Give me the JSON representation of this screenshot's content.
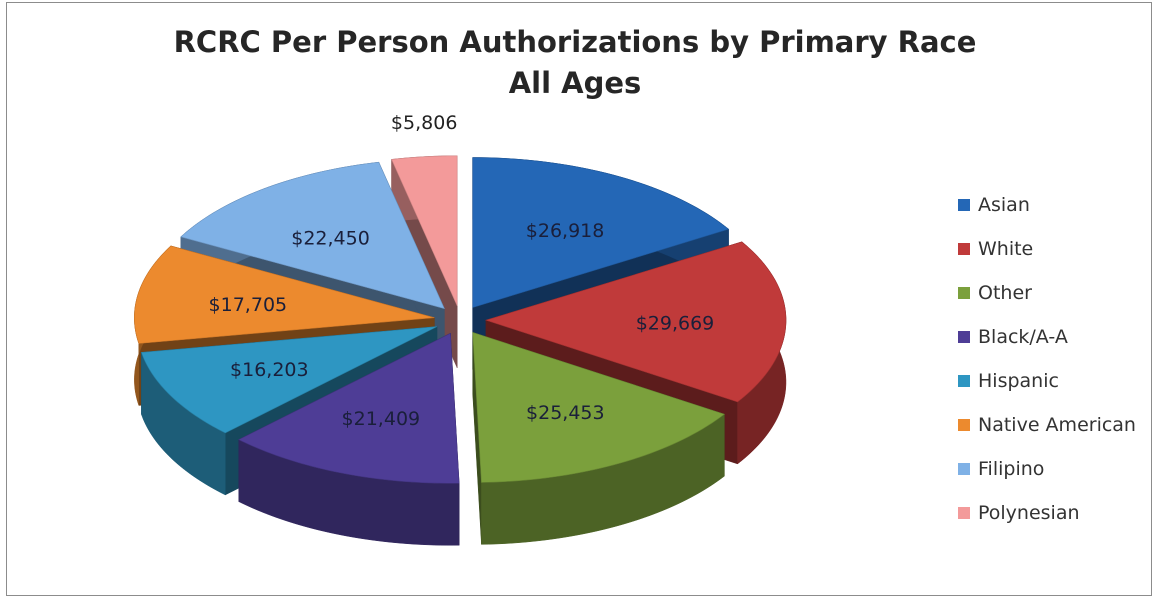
{
  "chart_data": {
    "type": "pie",
    "title": "RCRC Per Person Authorizations by Primary Race",
    "subtitle": "All Ages",
    "categories": [
      "Asian",
      "White",
      "Other",
      "Black/A-A",
      "Hispanic",
      "Native American",
      "Filipino",
      "Polynesian"
    ],
    "values": [
      26918,
      29669,
      25453,
      21409,
      16203,
      17705,
      22450,
      5806
    ],
    "value_labels": [
      "$26,918",
      "$29,669",
      "$25,453",
      "$21,409",
      "$16,203",
      "$17,705",
      "$22,450",
      "$5,806"
    ],
    "colors": [
      "#2467b6",
      "#c03a3a",
      "#7ba03c",
      "#4e3d96",
      "#2e96c2",
      "#ec8a2e",
      "#7fb1e6",
      "#f39a9a"
    ],
    "exploded": true,
    "three_d": true,
    "legend_position": "right"
  }
}
